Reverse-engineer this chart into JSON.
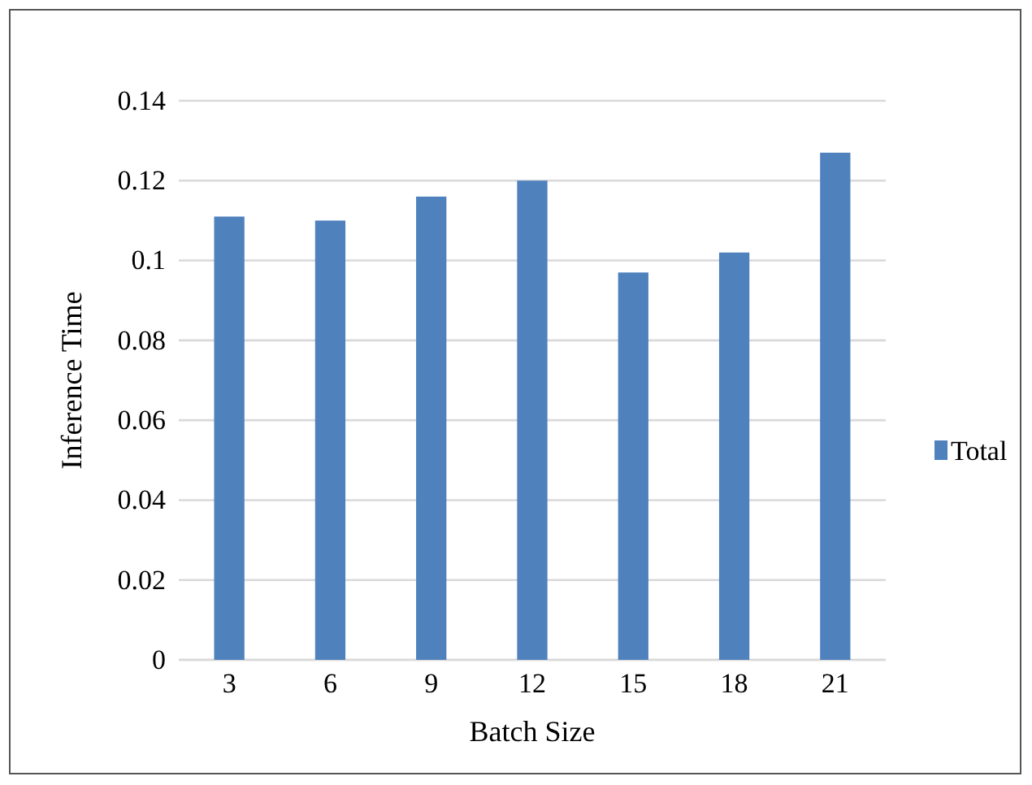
{
  "chart_data": {
    "type": "bar",
    "xlabel": "Batch Size",
    "ylabel": "Inference Time",
    "categories": [
      "3",
      "6",
      "9",
      "12",
      "15",
      "18",
      "21"
    ],
    "series": [
      {
        "name": "Total",
        "color": "#4f81bd",
        "values": [
          0.111,
          0.11,
          0.116,
          0.12,
          0.097,
          0.102,
          0.127
        ]
      }
    ],
    "ylim": [
      0,
      0.14
    ],
    "yticks": [
      0,
      0.02,
      0.04,
      0.06,
      0.08,
      0.1,
      0.12,
      0.14
    ],
    "grid": "y",
    "legend": "right"
  }
}
